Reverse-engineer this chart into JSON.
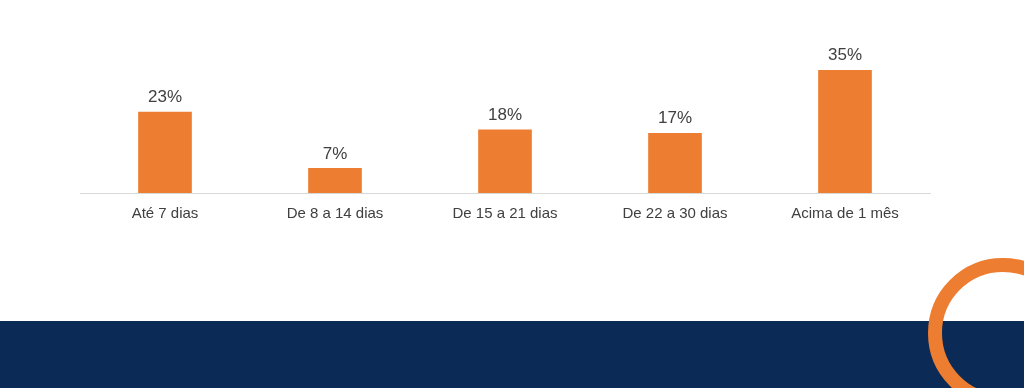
{
  "chart_data": {
    "type": "bar",
    "categories": [
      "Até 7 dias",
      "De 8 a 14 dias",
      "De 15 a 21 dias",
      "De 22 a 30 dias",
      "Acima de 1 mês"
    ],
    "values": [
      23,
      7,
      18,
      17,
      35
    ],
    "value_labels": [
      "23%",
      "7%",
      "18%",
      "17%",
      "35%"
    ],
    "color": "#ed7d31",
    "grid": false,
    "legend": false
  }
}
